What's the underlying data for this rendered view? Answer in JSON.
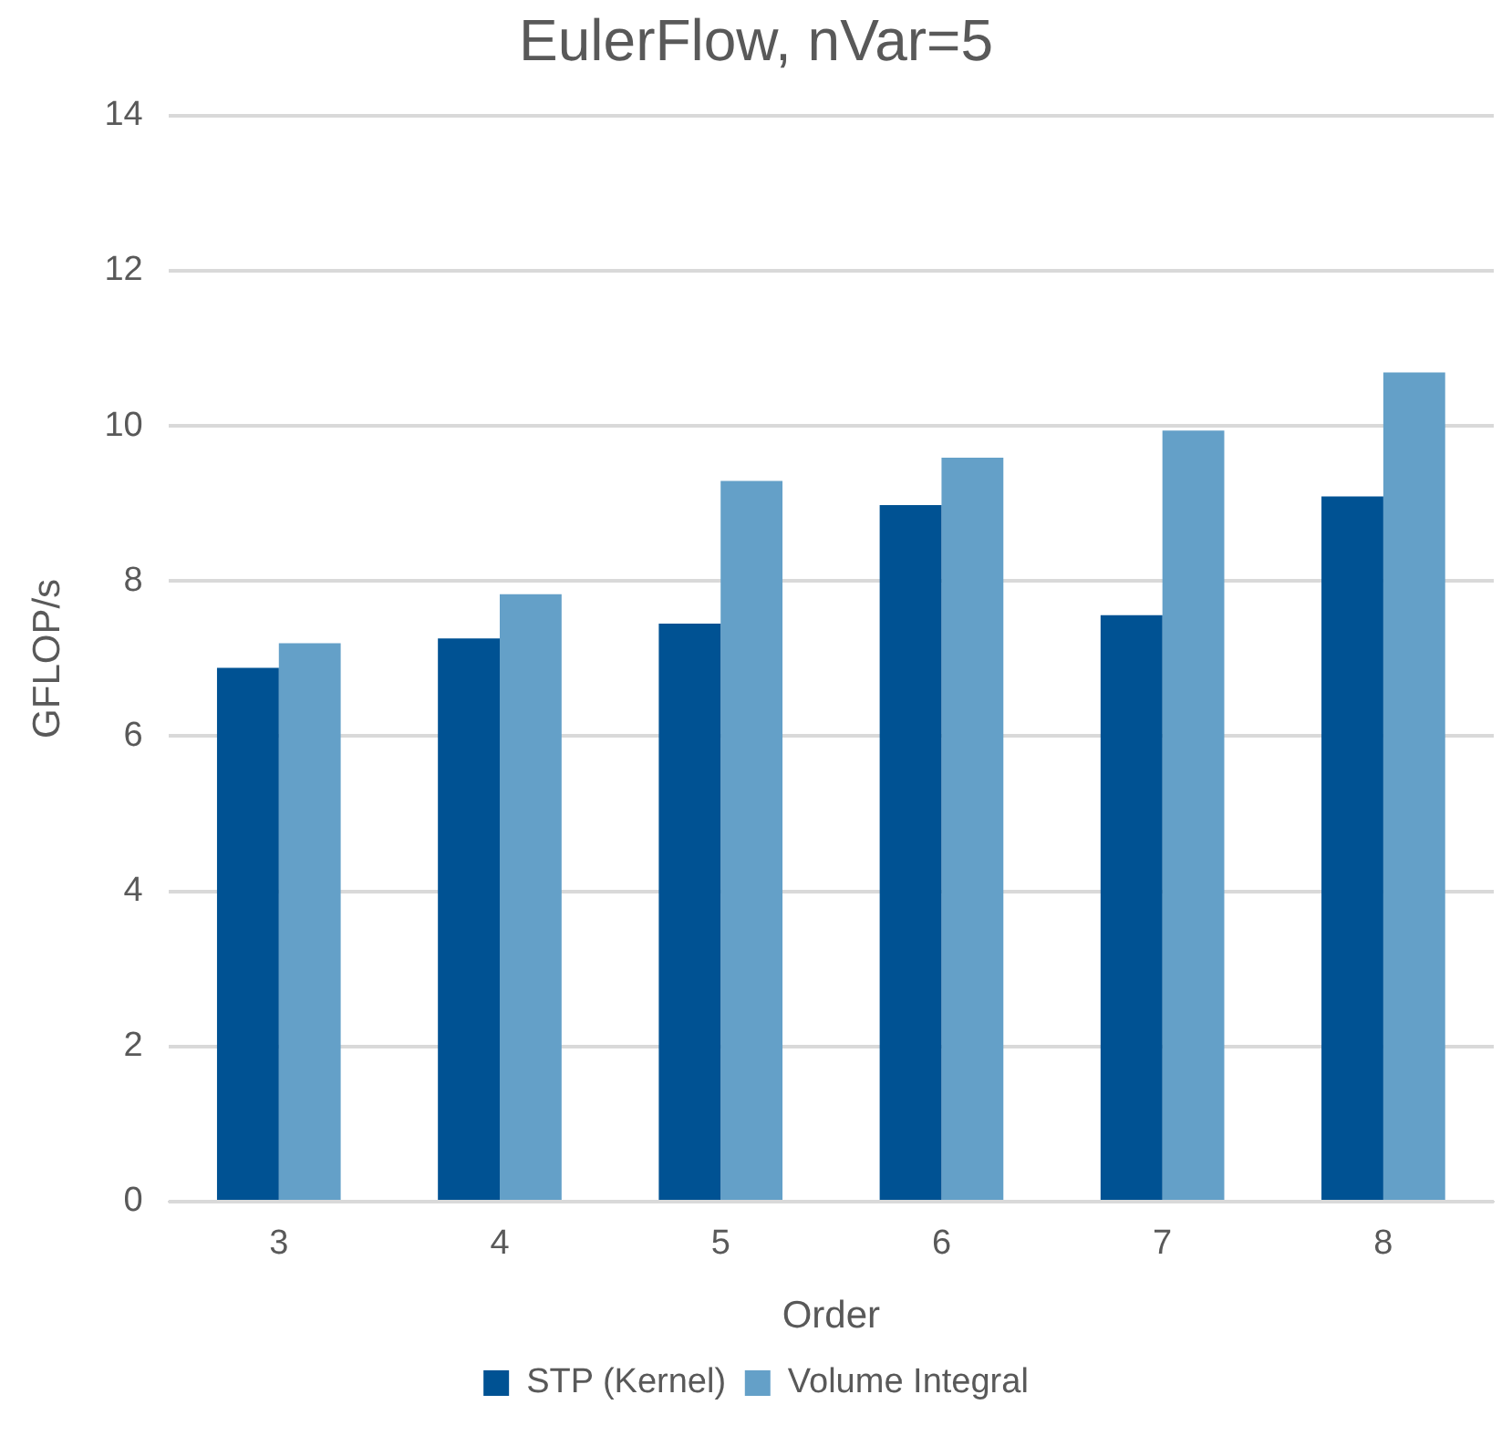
{
  "chart_data": {
    "type": "bar",
    "title": "EulerFlow, nVar=5",
    "xlabel": "Order",
    "ylabel": "GFLOP/s",
    "categories": [
      "3",
      "4",
      "5",
      "6",
      "7",
      "8"
    ],
    "series": [
      {
        "name": "STP (Kernel)",
        "color": "#005293",
        "values": [
          6.88,
          7.26,
          7.45,
          8.98,
          7.56,
          9.09
        ]
      },
      {
        "name": "Volume Integral",
        "color": "#64a0c8",
        "values": [
          7.2,
          7.83,
          9.29,
          9.59,
          9.94,
          10.69
        ]
      }
    ],
    "ylim": [
      0,
      14
    ],
    "yticks": [
      0,
      2,
      4,
      6,
      8,
      10,
      12,
      14
    ],
    "grid": "y",
    "legend": "bottom"
  }
}
